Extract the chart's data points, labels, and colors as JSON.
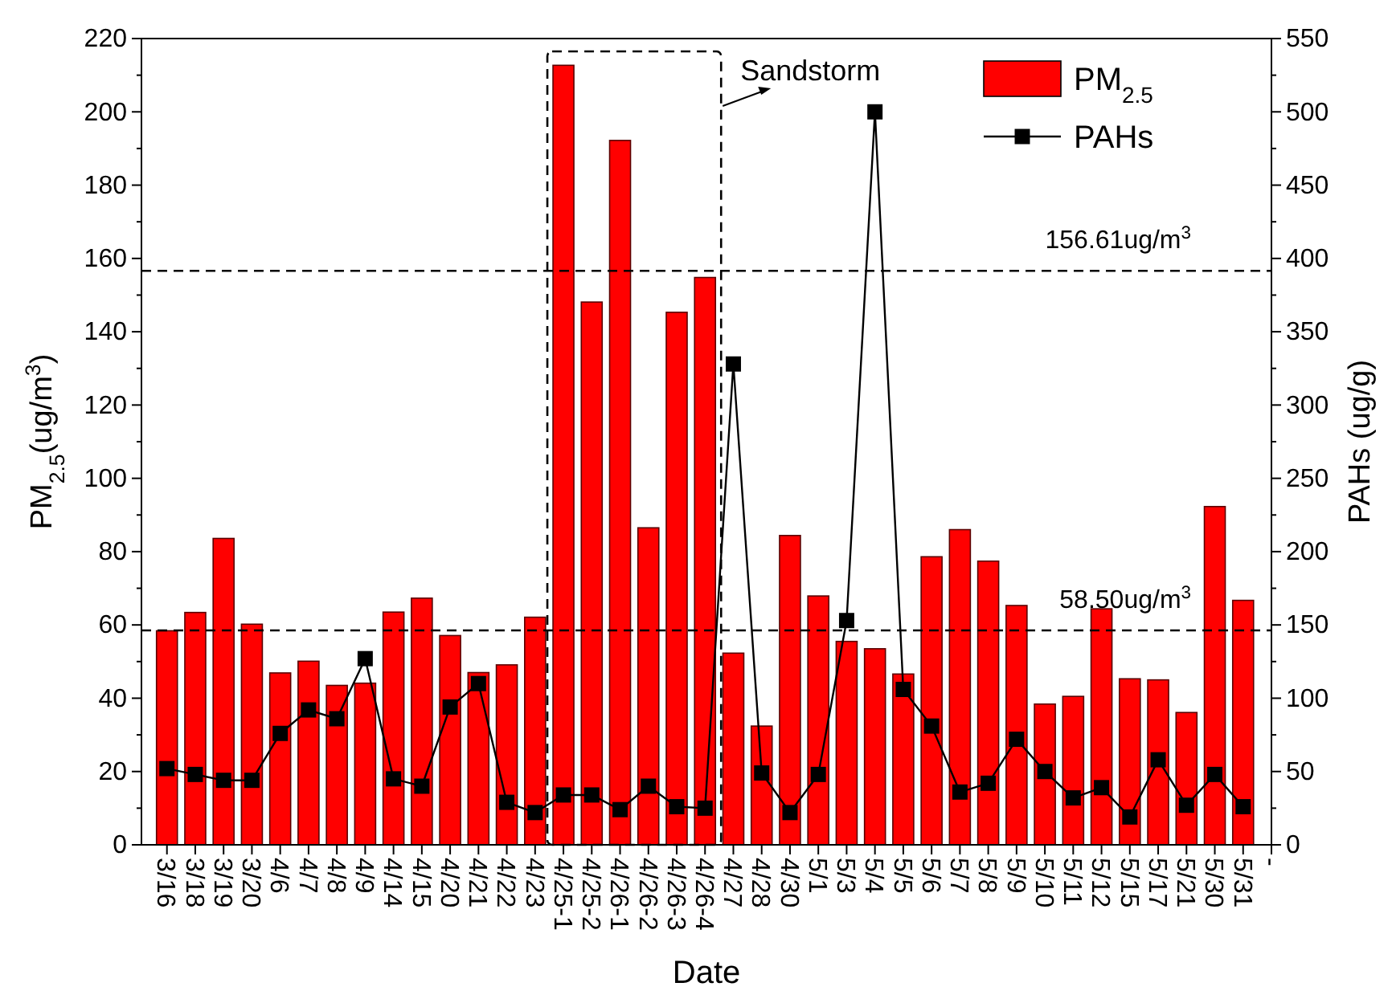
{
  "chart_data": {
    "type": "bar",
    "categories": [
      "3/16",
      "3/18",
      "3/19",
      "3/20",
      "4/6",
      "4/7",
      "4/8",
      "4/9",
      "4/14",
      "4/15",
      "4/20",
      "4/21",
      "4/22",
      "4/23",
      "4/25-1",
      "4/25-2",
      "4/26-1",
      "4/26-2",
      "4/26-3",
      "4/26-4",
      "4/27",
      "4/28",
      "4/30",
      "5/1",
      "5/3",
      "5/4",
      "5/5",
      "5/6",
      "5/7",
      "5/8",
      "5/9",
      "5/10",
      "5/11",
      "5/12",
      "5/15",
      "5/17",
      "5/21",
      "5/30",
      "5/31",
      "-"
    ],
    "series": [
      {
        "name": "PM$_{2.5}$",
        "color": "#ff0000",
        "values": [
          58.4,
          63.4,
          83.6,
          60.2,
          46.9,
          50.1,
          43.5,
          44.1,
          63.5,
          67.3,
          57.1,
          47.0,
          49.1,
          62.1,
          212.7,
          148.1,
          192.2,
          86.5,
          145.3,
          154.8,
          52.3,
          32.4,
          84.4,
          67.9,
          55.5,
          53.5,
          46.6,
          78.6,
          86.0,
          77.4,
          65.3,
          38.4,
          40.5,
          64.4,
          45.3,
          45.0,
          36.1,
          92.3,
          66.7,
          null
        ]
      },
      {
        "name": "PAHs",
        "type": "line",
        "axis": "y2",
        "color": "#000000",
        "marker": "square",
        "line_style": "solid",
        "values": [
          52,
          48,
          44,
          44,
          76,
          92,
          86,
          127,
          45,
          40,
          94,
          110,
          29,
          22,
          34,
          34,
          24,
          40,
          26,
          25,
          328,
          49,
          22,
          48,
          153,
          500,
          106,
          81,
          36,
          42,
          72,
          50,
          32,
          39,
          19,
          58,
          27,
          48,
          26,
          null
        ]
      }
    ],
    "xlabel": "Date",
    "ylabel": "PM$_{2.5}$(ug/m$^{3}$)",
    "y2label": "PAHs (ug/g)",
    "ylim": [
      0,
      220
    ],
    "yticks": [
      0,
      {
        "value": 10,
        "label": null
      },
      20,
      {
        "value": 30,
        "label": null
      },
      40,
      {
        "value": 50,
        "label": null
      },
      60,
      {
        "value": 70,
        "label": null
      },
      80,
      {
        "value": 90,
        "label": null
      },
      100,
      {
        "value": 110,
        "label": null
      },
      120,
      {
        "value": 130,
        "label": null
      },
      140,
      {
        "value": 150,
        "label": null
      },
      160,
      {
        "value": 170,
        "label": null
      },
      180,
      {
        "value": 190,
        "label": null
      },
      200,
      {
        "value": 210,
        "label": null
      },
      220
    ],
    "y2lim": [
      0,
      550
    ],
    "y2ticks": [
      0,
      {
        "value": 25,
        "label": null
      },
      50,
      {
        "value": 75,
        "label": null
      },
      100,
      {
        "value": 125,
        "label": null
      },
      150,
      {
        "value": 175,
        "label": null
      },
      200,
      {
        "value": 225,
        "label": null
      },
      250,
      {
        "value": 275,
        "label": null
      },
      300,
      {
        "value": 325,
        "label": null
      },
      350,
      {
        "value": 375,
        "label": null
      },
      400,
      {
        "value": 425,
        "label": null
      },
      450,
      {
        "value": 475,
        "label": null
      },
      500,
      {
        "value": 525,
        "label": null
      },
      550
    ],
    "ref_lines": [
      {
        "axis": "y",
        "value": 156.61,
        "label": "156.61ug/m$^{3}$",
        "line_style": "dashed"
      },
      {
        "axis": "y",
        "value": 58.5,
        "label": "58.50ug/m$^{3}$",
        "line_style": "dashed"
      }
    ],
    "annotations": [
      "Sandstorm"
    ],
    "legend": "top right",
    "grid": false
  }
}
